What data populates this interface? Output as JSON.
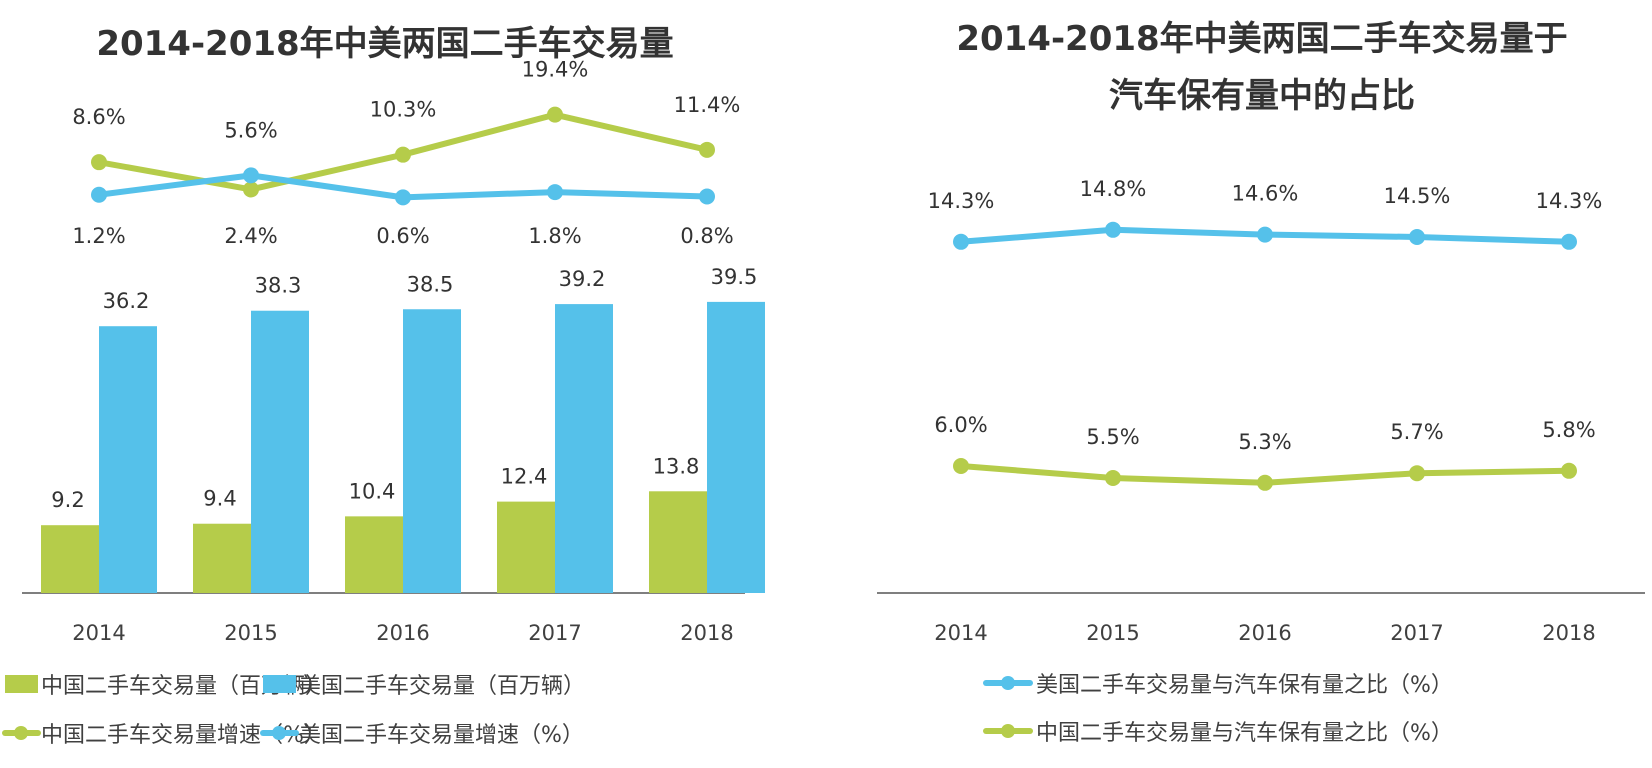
{
  "colors": {
    "china": "#b5cc4a",
    "usa": "#55c1ea",
    "axis": "#7f7f7f",
    "text": "#333333"
  },
  "chart_data": [
    {
      "type": "bar",
      "title": "2014-2018年中美两国二手车交易量",
      "xlabel": "",
      "ylabel": "",
      "categories": [
        "2014",
        "2015",
        "2016",
        "2017",
        "2018"
      ],
      "ylim": [
        0,
        40
      ],
      "grid": false,
      "legend_position": "bottom",
      "series": [
        {
          "name": "中国二手车交易量（百万辆）",
          "kind": "bar",
          "color": "#b5cc4a",
          "values": [
            9.2,
            9.4,
            10.4,
            12.4,
            13.8
          ],
          "labels": [
            "9.2",
            "9.4",
            "10.4",
            "12.4",
            "13.8"
          ]
        },
        {
          "name": "美国二手车交易量（百万辆）",
          "kind": "bar",
          "color": "#55c1ea",
          "values": [
            36.2,
            38.3,
            38.5,
            39.2,
            39.5
          ],
          "labels": [
            "36.2",
            "38.3",
            "38.5",
            "39.2",
            "39.5"
          ]
        },
        {
          "name": "中国二手车交易量增速（%）",
          "kind": "line",
          "color": "#b5cc4a",
          "values": [
            8.6,
            2.4,
            10.3,
            19.4,
            11.4
          ],
          "labels": [
            "8.6%",
            "2.4%",
            "10.3%",
            "19.4%",
            "11.4%"
          ],
          "label_position": [
            "above",
            "below",
            "above",
            "above",
            "above"
          ]
        },
        {
          "name": "美国二手车交易量增速（%）",
          "kind": "line",
          "color": "#55c1ea",
          "values": [
            1.2,
            5.6,
            0.6,
            1.8,
            0.8
          ],
          "labels": [
            "1.2%",
            "5.6%",
            "0.6%",
            "1.8%",
            "0.8%"
          ],
          "label_position": [
            "below",
            "above",
            "below",
            "below",
            "below"
          ]
        }
      ],
      "legend": [
        {
          "label": "中国二手车交易量（百万辆）",
          "icon": "bar-swatch",
          "color": "#b5cc4a"
        },
        {
          "label": "美国二手车交易量（百万辆）",
          "icon": "bar-swatch",
          "color": "#55c1ea"
        },
        {
          "label": "中国二手车交易量增速（%）",
          "icon": "line-marker",
          "color": "#b5cc4a"
        },
        {
          "label": "美国二手车交易量增速（%）",
          "icon": "line-marker",
          "color": "#55c1ea"
        }
      ]
    },
    {
      "type": "line",
      "title": "2014-2018年中美两国二手车交易量于汽车保有量中的占比",
      "title_lines": [
        "2014-2018年中美两国二手车交易量于",
        "汽车保有量中的占比"
      ],
      "xlabel": "",
      "ylabel": "",
      "categories": [
        "2014",
        "2015",
        "2016",
        "2017",
        "2018"
      ],
      "ylim": [
        0,
        16
      ],
      "grid": false,
      "legend_position": "bottom",
      "series": [
        {
          "name": "美国二手车交易量与汽车保有量之比（%）",
          "color": "#55c1ea",
          "values": [
            14.3,
            14.8,
            14.6,
            14.5,
            14.3
          ],
          "labels": [
            "14.3%",
            "14.8%",
            "14.6%",
            "14.5%",
            "14.3%"
          ]
        },
        {
          "name": "中国二手车交易量与汽车保有量之比（%）",
          "color": "#b5cc4a",
          "values": [
            6.0,
            5.5,
            5.3,
            5.7,
            5.8
          ],
          "labels": [
            "6.0%",
            "5.5%",
            "5.3%",
            "5.7%",
            "5.8%"
          ]
        }
      ],
      "legend": [
        {
          "label": "美国二手车交易量与汽车保有量之比（%）",
          "icon": "line-marker",
          "color": "#55c1ea"
        },
        {
          "label": "中国二手车交易量与汽车保有量之比（%）",
          "icon": "line-marker",
          "color": "#b5cc4a"
        }
      ]
    }
  ]
}
